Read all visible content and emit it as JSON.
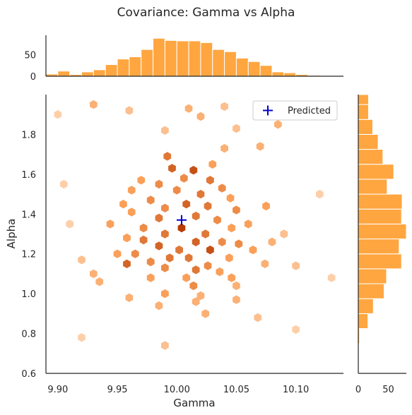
{
  "title": "Covariance: Gamma vs Alpha",
  "chart_data": {
    "type": "hexbin-joint",
    "title": "Covariance: Gamma vs Alpha",
    "xlabel": "Gamma",
    "ylabel": "Alpha",
    "xlim": [
      9.89,
      10.14
    ],
    "ylim": [
      0.6,
      2.0
    ],
    "x_ticks": [
      "9.90",
      "9.95",
      "10.00",
      "10.05",
      "10.10"
    ],
    "y_ticks": [
      "0.6",
      "0.8",
      "1.0",
      "1.2",
      "1.4",
      "1.6",
      "1.8"
    ],
    "colors": {
      "hist": "#ffa640",
      "hex_max": "#b83c02",
      "predicted": "#0000cc"
    },
    "legend": {
      "entries": [
        "Predicted"
      ],
      "placement": "top-right"
    },
    "predicted": {
      "x": 10.004,
      "y": 1.37
    },
    "x_hist": {
      "ticks": [
        "0",
        "50"
      ],
      "ylim": [
        0,
        95
      ],
      "bin_edges": [
        9.89,
        9.9,
        9.91,
        9.92,
        9.93,
        9.94,
        9.95,
        9.96,
        9.97,
        9.98,
        9.99,
        10.0,
        10.01,
        10.02,
        10.03,
        10.04,
        10.05,
        10.06,
        10.07,
        10.08,
        10.09,
        10.1,
        10.11,
        10.12
      ],
      "counts": [
        5,
        12,
        4,
        10,
        15,
        27,
        40,
        45,
        62,
        88,
        83,
        82,
        82,
        78,
        62,
        57,
        42,
        34,
        25,
        10,
        8,
        4,
        2
      ]
    },
    "y_hist": {
      "ticks": [
        "0",
        "50"
      ],
      "xlim": [
        0,
        80
      ],
      "bin_edges": [
        0.6,
        0.675,
        0.75,
        0.825,
        0.9,
        0.975,
        1.05,
        1.125,
        1.2,
        1.275,
        1.35,
        1.425,
        1.5,
        1.575,
        1.65,
        1.725,
        1.8,
        1.875,
        1.95,
        2.0
      ],
      "counts": [
        1,
        1,
        2,
        16,
        25,
        43,
        47,
        72,
        68,
        80,
        72,
        73,
        48,
        59,
        41,
        33,
        24,
        17,
        17
      ]
    },
    "hexbins": [
      {
        "x": 9.93,
        "y": 1.95,
        "c": 4
      },
      {
        "x": 9.96,
        "y": 1.92,
        "c": 3
      },
      {
        "x": 10.01,
        "y": 1.93,
        "c": 4
      },
      {
        "x": 10.04,
        "y": 1.94,
        "c": 3
      },
      {
        "x": 10.07,
        "y": 1.92,
        "c": 3
      },
      {
        "x": 10.085,
        "y": 1.85,
        "c": 4
      },
      {
        "x": 10.02,
        "y": 1.89,
        "c": 4
      },
      {
        "x": 9.99,
        "y": 1.82,
        "c": 3
      },
      {
        "x": 10.05,
        "y": 1.83,
        "c": 3
      },
      {
        "x": 10.04,
        "y": 1.73,
        "c": 4
      },
      {
        "x": 10.07,
        "y": 1.74,
        "c": 4
      },
      {
        "x": 10.03,
        "y": 1.65,
        "c": 5
      },
      {
        "x": 9.992,
        "y": 1.69,
        "c": 7
      },
      {
        "x": 9.996,
        "y": 1.63,
        "c": 8
      },
      {
        "x": 10.014,
        "y": 1.62,
        "c": 9
      },
      {
        "x": 10.006,
        "y": 1.58,
        "c": 6
      },
      {
        "x": 10.028,
        "y": 1.57,
        "c": 7
      },
      {
        "x": 9.985,
        "y": 1.55,
        "c": 6
      },
      {
        "x": 9.97,
        "y": 1.57,
        "c": 5
      },
      {
        "x": 9.962,
        "y": 1.52,
        "c": 5
      },
      {
        "x": 10.038,
        "y": 1.53,
        "c": 6
      },
      {
        "x": 10.045,
        "y": 1.48,
        "c": 5
      },
      {
        "x": 10.0,
        "y": 1.52,
        "c": 6
      },
      {
        "x": 10.02,
        "y": 1.5,
        "c": 7
      },
      {
        "x": 9.978,
        "y": 1.47,
        "c": 6
      },
      {
        "x": 10.008,
        "y": 1.45,
        "c": 8
      },
      {
        "x": 10.026,
        "y": 1.44,
        "c": 7
      },
      {
        "x": 9.955,
        "y": 1.45,
        "c": 5
      },
      {
        "x": 9.962,
        "y": 1.41,
        "c": 5
      },
      {
        "x": 9.99,
        "y": 1.43,
        "c": 6
      },
      {
        "x": 10.05,
        "y": 1.42,
        "c": 6
      },
      {
        "x": 10.075,
        "y": 1.44,
        "c": 5
      },
      {
        "x": 9.985,
        "y": 1.38,
        "c": 7
      },
      {
        "x": 10.016,
        "y": 1.39,
        "c": 7
      },
      {
        "x": 10.034,
        "y": 1.37,
        "c": 6
      },
      {
        "x": 10.004,
        "y": 1.33,
        "c": 10
      },
      {
        "x": 9.972,
        "y": 1.33,
        "c": 6
      },
      {
        "x": 9.944,
        "y": 1.35,
        "c": 5
      },
      {
        "x": 10.046,
        "y": 1.33,
        "c": 5
      },
      {
        "x": 10.06,
        "y": 1.35,
        "c": 5
      },
      {
        "x": 9.99,
        "y": 1.3,
        "c": 7
      },
      {
        "x": 10.024,
        "y": 1.3,
        "c": 7
      },
      {
        "x": 10.016,
        "y": 1.26,
        "c": 8
      },
      {
        "x": 9.972,
        "y": 1.27,
        "c": 7
      },
      {
        "x": 9.958,
        "y": 1.28,
        "c": 5
      },
      {
        "x": 10.038,
        "y": 1.26,
        "c": 6
      },
      {
        "x": 10.052,
        "y": 1.25,
        "c": 6
      },
      {
        "x": 9.985,
        "y": 1.24,
        "c": 8
      },
      {
        "x": 10.002,
        "y": 1.22,
        "c": 7
      },
      {
        "x": 10.028,
        "y": 1.22,
        "c": 9
      },
      {
        "x": 9.965,
        "y": 1.2,
        "c": 6
      },
      {
        "x": 9.95,
        "y": 1.2,
        "c": 5
      },
      {
        "x": 10.064,
        "y": 1.22,
        "c": 5
      },
      {
        "x": 10.08,
        "y": 1.26,
        "c": 4
      },
      {
        "x": 9.994,
        "y": 1.18,
        "c": 7
      },
      {
        "x": 10.01,
        "y": 1.18,
        "c": 7
      },
      {
        "x": 10.044,
        "y": 1.18,
        "c": 5
      },
      {
        "x": 9.978,
        "y": 1.16,
        "c": 6
      },
      {
        "x": 9.958,
        "y": 1.15,
        "c": 8
      },
      {
        "x": 10.026,
        "y": 1.14,
        "c": 6
      },
      {
        "x": 10.074,
        "y": 1.15,
        "c": 4
      },
      {
        "x": 9.99,
        "y": 1.13,
        "c": 6
      },
      {
        "x": 10.016,
        "y": 1.12,
        "c": 7
      },
      {
        "x": 10.036,
        "y": 1.11,
        "c": 5
      },
      {
        "x": 9.93,
        "y": 1.1,
        "c": 4
      },
      {
        "x": 9.978,
        "y": 1.08,
        "c": 5
      },
      {
        "x": 10.008,
        "y": 1.08,
        "c": 5
      },
      {
        "x": 10.046,
        "y": 1.08,
        "c": 5
      },
      {
        "x": 9.935,
        "y": 1.06,
        "c": 4
      },
      {
        "x": 10.014,
        "y": 1.04,
        "c": 6
      },
      {
        "x": 10.05,
        "y": 1.04,
        "c": 4
      },
      {
        "x": 9.99,
        "y": 1.0,
        "c": 5
      },
      {
        "x": 10.02,
        "y": 0.99,
        "c": 4
      },
      {
        "x": 9.96,
        "y": 0.98,
        "c": 4
      },
      {
        "x": 9.985,
        "y": 0.94,
        "c": 4
      },
      {
        "x": 10.016,
        "y": 0.96,
        "c": 4
      },
      {
        "x": 10.05,
        "y": 0.97,
        "c": 4
      },
      {
        "x": 10.024,
        "y": 0.9,
        "c": 4
      },
      {
        "x": 10.068,
        "y": 0.88,
        "c": 3
      },
      {
        "x": 9.99,
        "y": 0.74,
        "c": 3
      },
      {
        "x": 9.92,
        "y": 1.17,
        "c": 3
      },
      {
        "x": 10.09,
        "y": 1.3,
        "c": 3
      },
      {
        "x": 10.1,
        "y": 1.14,
        "c": 3
      },
      {
        "x": 9.905,
        "y": 1.55,
        "c": 2
      },
      {
        "x": 9.9,
        "y": 1.9,
        "c": 2
      },
      {
        "x": 9.91,
        "y": 1.35,
        "c": 2
      },
      {
        "x": 10.12,
        "y": 1.5,
        "c": 2
      },
      {
        "x": 10.13,
        "y": 1.08,
        "c": 2
      },
      {
        "x": 9.92,
        "y": 0.78,
        "c": 2
      },
      {
        "x": 10.1,
        "y": 0.82,
        "c": 2
      }
    ]
  }
}
